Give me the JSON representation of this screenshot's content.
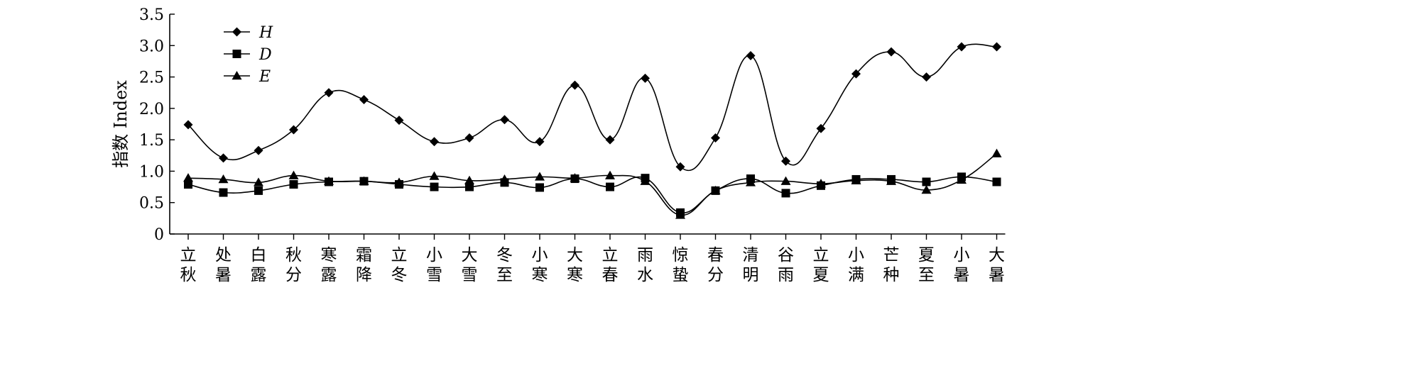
{
  "chart_data": {
    "type": "line",
    "ylabel": "指数 Index",
    "xlabel": "",
    "ylim": [
      0,
      3.5
    ],
    "yticks": [
      "0",
      "0.5",
      "1.0",
      "1.5",
      "2.0",
      "2.5",
      "3.0",
      "3.5"
    ],
    "categories": [
      "立秋",
      "处暑",
      "白露",
      "秋分",
      "寒露",
      "霜降",
      "立冬",
      "小雪",
      "大雪",
      "冬至",
      "小寒",
      "大寒",
      "立春",
      "雨水",
      "惊蛰",
      "春分",
      "清明",
      "谷雨",
      "立夏",
      "小满",
      "芒种",
      "夏至",
      "小暑",
      "大暑"
    ],
    "series": [
      {
        "name": "H",
        "marker": "diamond",
        "values": [
          1.74,
          1.21,
          1.33,
          1.66,
          2.25,
          2.14,
          1.81,
          1.47,
          1.53,
          1.82,
          1.47,
          2.37,
          1.5,
          2.48,
          1.07,
          1.53,
          2.84,
          1.16,
          1.68,
          2.55,
          2.9,
          2.5,
          2.98,
          2.98
        ]
      },
      {
        "name": "D",
        "marker": "square",
        "values": [
          0.79,
          0.66,
          0.69,
          0.79,
          0.83,
          0.84,
          0.79,
          0.75,
          0.75,
          0.82,
          0.74,
          0.88,
          0.75,
          0.89,
          0.34,
          0.69,
          0.88,
          0.65,
          0.77,
          0.87,
          0.87,
          0.83,
          0.91,
          0.83
        ]
      },
      {
        "name": "E",
        "marker": "triangle",
        "values": [
          0.89,
          0.87,
          0.82,
          0.93,
          0.84,
          0.84,
          0.82,
          0.92,
          0.85,
          0.87,
          0.91,
          0.89,
          0.93,
          0.84,
          0.3,
          0.69,
          0.82,
          0.84,
          0.8,
          0.85,
          0.84,
          0.7,
          0.86,
          1.28
        ]
      }
    ],
    "legend": "top-left",
    "grid": false,
    "colors": {
      "line": "#000000",
      "background": "#ffffff"
    }
  }
}
